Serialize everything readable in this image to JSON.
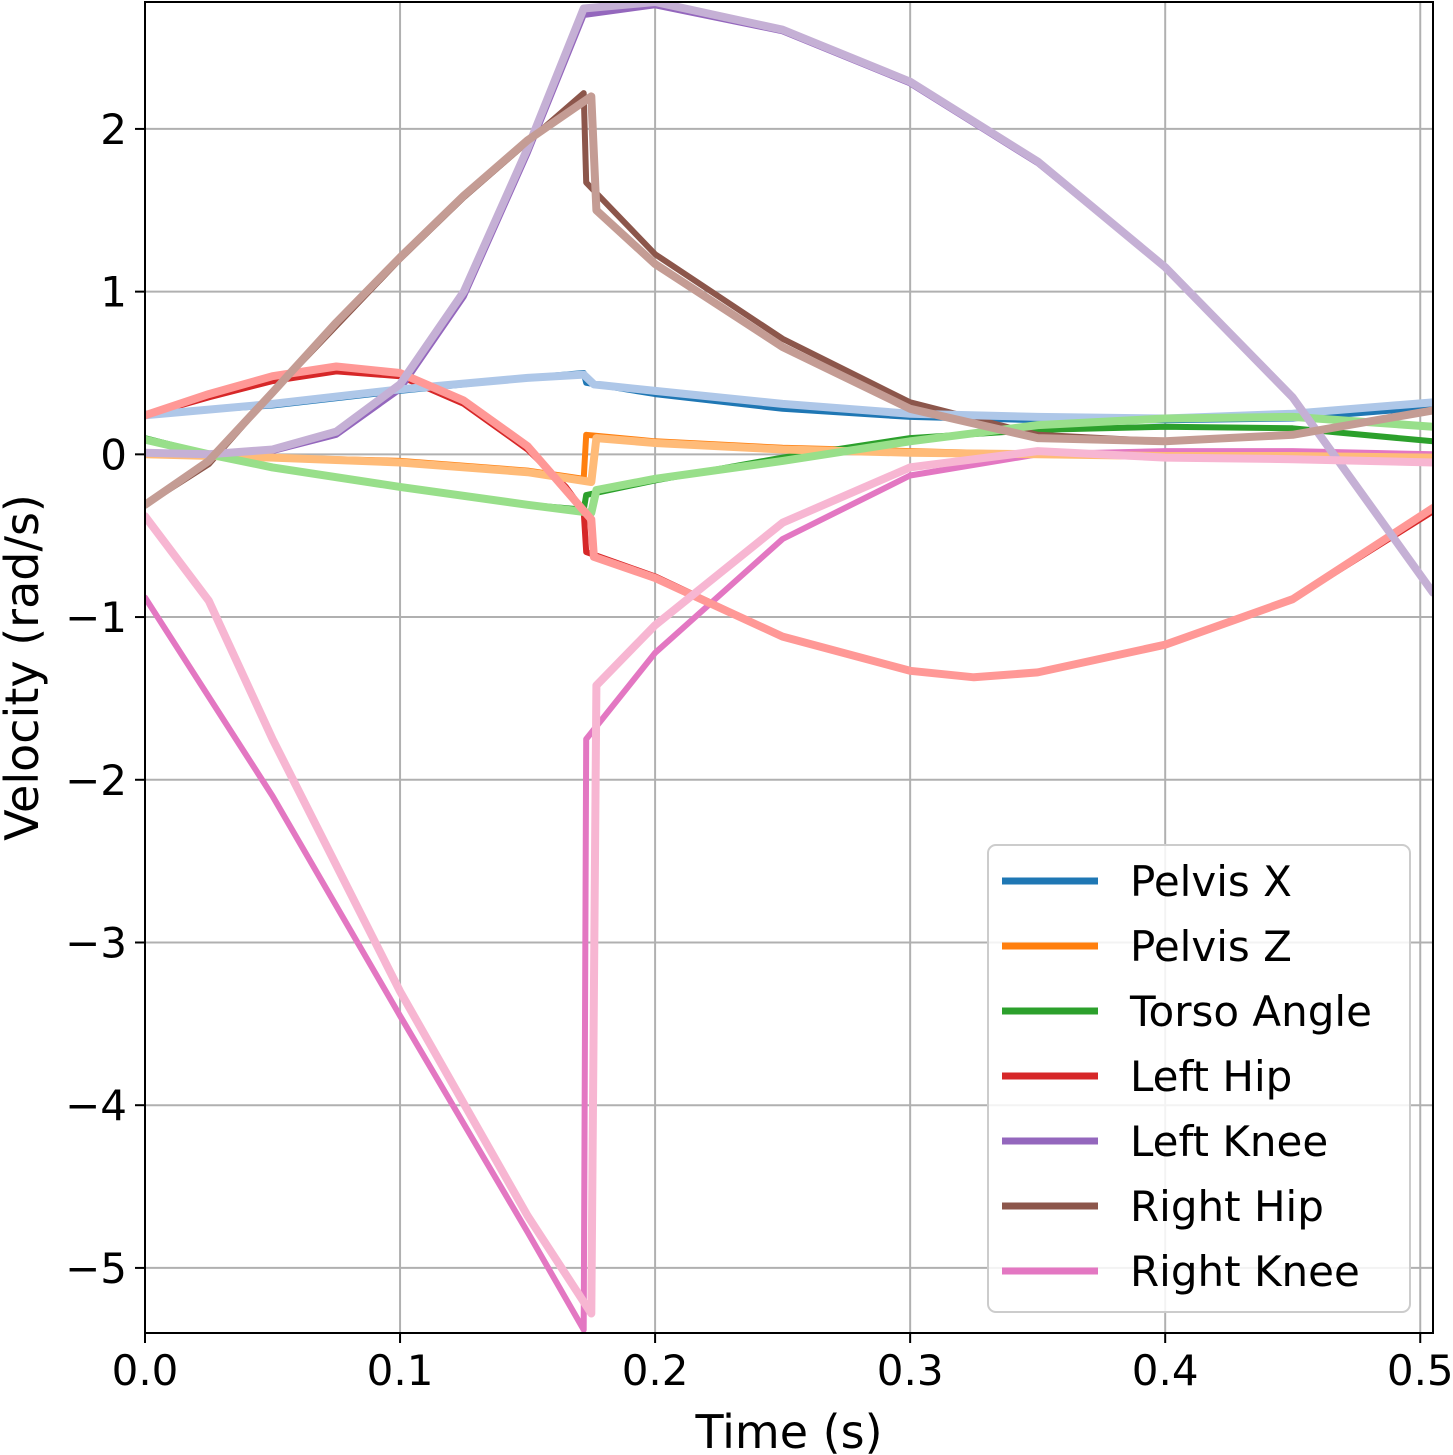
{
  "chart_data": {
    "type": "line",
    "title": "",
    "xlabel": "Time (s)",
    "ylabel": "Velocity (rad/s)",
    "xlim": [
      0.0,
      0.505
    ],
    "ylim": [
      -5.4,
      2.78
    ],
    "x_ticks": [
      0.0,
      0.1,
      0.2,
      0.3,
      0.4,
      0.5
    ],
    "x_tick_labels": [
      "0.0",
      "0.1",
      "0.2",
      "0.3",
      "0.4",
      "0.5"
    ],
    "y_ticks": [
      2,
      1,
      0,
      -1,
      -2,
      -3,
      -4,
      -5
    ],
    "y_tick_labels": [
      "2",
      "1",
      "0",
      "−1",
      "−2",
      "−3",
      "−4",
      "−5"
    ],
    "grid": true,
    "legend_position": "lower-right",
    "series": [
      {
        "name": "Pelvis X",
        "color": "#1f77b4",
        "light_color": "#aec7e8",
        "values": [
          [
            0.0,
            0.25
          ],
          [
            0.05,
            0.3
          ],
          [
            0.1,
            0.39
          ],
          [
            0.15,
            0.47
          ],
          [
            0.172,
            0.5
          ],
          [
            0.173,
            0.44
          ],
          [
            0.2,
            0.37
          ],
          [
            0.25,
            0.28
          ],
          [
            0.3,
            0.23
          ],
          [
            0.35,
            0.21
          ],
          [
            0.4,
            0.21
          ],
          [
            0.45,
            0.22
          ],
          [
            0.505,
            0.29
          ]
        ],
        "light_values": [
          [
            0.0,
            0.24
          ],
          [
            0.05,
            0.31
          ],
          [
            0.1,
            0.4
          ],
          [
            0.15,
            0.47
          ],
          [
            0.172,
            0.49
          ],
          [
            0.176,
            0.43
          ],
          [
            0.2,
            0.39
          ],
          [
            0.25,
            0.31
          ],
          [
            0.3,
            0.25
          ],
          [
            0.35,
            0.23
          ],
          [
            0.4,
            0.22
          ],
          [
            0.45,
            0.25
          ],
          [
            0.505,
            0.32
          ]
        ]
      },
      {
        "name": "Pelvis Z",
        "color": "#ff7f0e",
        "light_color": "#ffbb78",
        "values": [
          [
            0.0,
            0.0
          ],
          [
            0.05,
            -0.02
          ],
          [
            0.1,
            -0.04
          ],
          [
            0.15,
            -0.1
          ],
          [
            0.172,
            -0.15
          ],
          [
            0.173,
            0.12
          ],
          [
            0.2,
            0.08
          ],
          [
            0.25,
            0.04
          ],
          [
            0.3,
            0.02
          ],
          [
            0.35,
            0.0
          ],
          [
            0.4,
            -0.01
          ],
          [
            0.45,
            -0.02
          ],
          [
            0.505,
            -0.02
          ]
        ],
        "light_values": [
          [
            0.0,
            0.0
          ],
          [
            0.05,
            -0.02
          ],
          [
            0.1,
            -0.05
          ],
          [
            0.15,
            -0.11
          ],
          [
            0.175,
            -0.17
          ],
          [
            0.177,
            0.1
          ],
          [
            0.2,
            0.07
          ],
          [
            0.25,
            0.03
          ],
          [
            0.3,
            0.01
          ],
          [
            0.35,
            0.0
          ],
          [
            0.4,
            -0.01
          ],
          [
            0.45,
            -0.01
          ],
          [
            0.505,
            -0.02
          ]
        ]
      },
      {
        "name": "Torso Angle",
        "color": "#2ca02c",
        "light_color": "#98df8a",
        "values": [
          [
            0.0,
            0.1
          ],
          [
            0.025,
            0.0
          ],
          [
            0.05,
            -0.08
          ],
          [
            0.1,
            -0.2
          ],
          [
            0.15,
            -0.31
          ],
          [
            0.172,
            -0.34
          ],
          [
            0.173,
            -0.25
          ],
          [
            0.2,
            -0.16
          ],
          [
            0.25,
            -0.02
          ],
          [
            0.3,
            0.1
          ],
          [
            0.35,
            0.15
          ],
          [
            0.4,
            0.17
          ],
          [
            0.45,
            0.16
          ],
          [
            0.505,
            0.08
          ]
        ],
        "light_values": [
          [
            0.0,
            0.09
          ],
          [
            0.025,
            0.0
          ],
          [
            0.05,
            -0.08
          ],
          [
            0.1,
            -0.2
          ],
          [
            0.15,
            -0.31
          ],
          [
            0.175,
            -0.36
          ],
          [
            0.177,
            -0.22
          ],
          [
            0.2,
            -0.15
          ],
          [
            0.25,
            -0.04
          ],
          [
            0.3,
            0.08
          ],
          [
            0.35,
            0.18
          ],
          [
            0.4,
            0.22
          ],
          [
            0.45,
            0.23
          ],
          [
            0.505,
            0.17
          ]
        ]
      },
      {
        "name": "Left Hip",
        "color": "#d62728",
        "light_color": "#ff9896",
        "values": [
          [
            0.0,
            0.24
          ],
          [
            0.025,
            0.35
          ],
          [
            0.05,
            0.45
          ],
          [
            0.075,
            0.51
          ],
          [
            0.1,
            0.48
          ],
          [
            0.125,
            0.31
          ],
          [
            0.15,
            0.03
          ],
          [
            0.165,
            -0.2
          ],
          [
            0.172,
            -0.35
          ],
          [
            0.173,
            -0.6
          ],
          [
            0.2,
            -0.75
          ],
          [
            0.25,
            -1.12
          ],
          [
            0.3,
            -1.33
          ],
          [
            0.325,
            -1.37
          ],
          [
            0.35,
            -1.34
          ],
          [
            0.4,
            -1.17
          ],
          [
            0.45,
            -0.89
          ],
          [
            0.505,
            -0.35
          ]
        ],
        "light_values": [
          [
            0.0,
            0.24
          ],
          [
            0.025,
            0.37
          ],
          [
            0.05,
            0.48
          ],
          [
            0.075,
            0.54
          ],
          [
            0.1,
            0.5
          ],
          [
            0.125,
            0.33
          ],
          [
            0.15,
            0.05
          ],
          [
            0.165,
            -0.22
          ],
          [
            0.175,
            -0.4
          ],
          [
            0.176,
            -0.63
          ],
          [
            0.2,
            -0.76
          ],
          [
            0.25,
            -1.12
          ],
          [
            0.3,
            -1.33
          ],
          [
            0.325,
            -1.37
          ],
          [
            0.35,
            -1.34
          ],
          [
            0.4,
            -1.17
          ],
          [
            0.45,
            -0.89
          ],
          [
            0.505,
            -0.33
          ]
        ]
      },
      {
        "name": "Left Knee",
        "color": "#9467bd",
        "light_color": "#c5b0d5",
        "values": [
          [
            0.0,
            0.0
          ],
          [
            0.025,
            -0.01
          ],
          [
            0.05,
            0.02
          ],
          [
            0.075,
            0.12
          ],
          [
            0.1,
            0.4
          ],
          [
            0.125,
            0.97
          ],
          [
            0.15,
            1.85
          ],
          [
            0.172,
            2.7
          ],
          [
            0.2,
            2.76
          ],
          [
            0.25,
            2.6
          ],
          [
            0.3,
            2.28
          ],
          [
            0.35,
            1.79
          ],
          [
            0.4,
            1.15
          ],
          [
            0.45,
            0.35
          ],
          [
            0.505,
            -0.85
          ]
        ],
        "light_values": [
          [
            0.0,
            0.01
          ],
          [
            0.025,
            0.0
          ],
          [
            0.05,
            0.03
          ],
          [
            0.075,
            0.14
          ],
          [
            0.1,
            0.43
          ],
          [
            0.125,
            1.0
          ],
          [
            0.15,
            1.88
          ],
          [
            0.172,
            2.74
          ],
          [
            0.2,
            2.78
          ],
          [
            0.25,
            2.61
          ],
          [
            0.3,
            2.29
          ],
          [
            0.35,
            1.8
          ],
          [
            0.4,
            1.15
          ],
          [
            0.45,
            0.35
          ],
          [
            0.505,
            -0.85
          ]
        ]
      },
      {
        "name": "Right Hip",
        "color": "#8c564b",
        "light_color": "#c49c94",
        "values": [
          [
            0.0,
            -0.31
          ],
          [
            0.025,
            -0.06
          ],
          [
            0.05,
            0.38
          ],
          [
            0.075,
            0.79
          ],
          [
            0.1,
            1.2
          ],
          [
            0.125,
            1.58
          ],
          [
            0.15,
            1.92
          ],
          [
            0.172,
            2.22
          ],
          [
            0.173,
            1.67
          ],
          [
            0.2,
            1.23
          ],
          [
            0.25,
            0.71
          ],
          [
            0.3,
            0.32
          ],
          [
            0.35,
            0.12
          ],
          [
            0.4,
            0.08
          ],
          [
            0.45,
            0.12
          ],
          [
            0.505,
            0.27
          ]
        ],
        "light_values": [
          [
            0.0,
            -0.31
          ],
          [
            0.025,
            -0.04
          ],
          [
            0.05,
            0.38
          ],
          [
            0.075,
            0.81
          ],
          [
            0.1,
            1.21
          ],
          [
            0.125,
            1.59
          ],
          [
            0.15,
            1.93
          ],
          [
            0.175,
            2.2
          ],
          [
            0.177,
            1.5
          ],
          [
            0.2,
            1.17
          ],
          [
            0.25,
            0.66
          ],
          [
            0.3,
            0.28
          ],
          [
            0.35,
            0.1
          ],
          [
            0.4,
            0.08
          ],
          [
            0.45,
            0.12
          ],
          [
            0.505,
            0.27
          ]
        ]
      },
      {
        "name": "Right Knee",
        "color": "#e377c2",
        "light_color": "#f7b6d2",
        "values": [
          [
            0.0,
            -0.88
          ],
          [
            0.05,
            -2.1
          ],
          [
            0.1,
            -3.45
          ],
          [
            0.15,
            -4.78
          ],
          [
            0.172,
            -5.38
          ],
          [
            0.173,
            -1.75
          ],
          [
            0.2,
            -1.22
          ],
          [
            0.25,
            -0.52
          ],
          [
            0.3,
            -0.13
          ],
          [
            0.35,
            0.0
          ],
          [
            0.4,
            0.02
          ],
          [
            0.45,
            0.02
          ],
          [
            0.505,
            0.0
          ]
        ],
        "light_values": [
          [
            0.0,
            -0.38
          ],
          [
            0.025,
            -0.9
          ],
          [
            0.05,
            -1.75
          ],
          [
            0.1,
            -3.3
          ],
          [
            0.15,
            -4.68
          ],
          [
            0.175,
            -5.28
          ],
          [
            0.177,
            -1.42
          ],
          [
            0.2,
            -1.05
          ],
          [
            0.25,
            -0.42
          ],
          [
            0.3,
            -0.08
          ],
          [
            0.35,
            0.02
          ],
          [
            0.4,
            -0.02
          ],
          [
            0.45,
            -0.03
          ],
          [
            0.505,
            -0.05
          ]
        ]
      }
    ]
  }
}
